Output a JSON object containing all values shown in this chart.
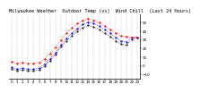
{
  "title": "Milwaukee Weather  Outdoor Temp (vs)  Wind Chill  (Last 24 Hours)",
  "hours": [
    0,
    1,
    2,
    3,
    4,
    5,
    6,
    7,
    8,
    9,
    10,
    11,
    12,
    13,
    14,
    15,
    16,
    17,
    18,
    19,
    20,
    21,
    22,
    23
  ],
  "temp": [
    5,
    3,
    4,
    3,
    3,
    4,
    8,
    14,
    21,
    30,
    38,
    44,
    49,
    53,
    55,
    53,
    50,
    46,
    42,
    38,
    35,
    34,
    33,
    33
  ],
  "wind_chill": [
    -2,
    -4,
    -3,
    -4,
    -4,
    -3,
    2,
    8,
    15,
    24,
    32,
    38,
    43,
    48,
    51,
    49,
    46,
    42,
    38,
    33,
    29,
    28,
    33,
    33
  ],
  "feels_like": [
    -4,
    -6,
    -5,
    -6,
    -6,
    -5,
    0,
    6,
    13,
    22,
    29,
    35,
    40,
    44,
    47,
    45,
    42,
    38,
    34,
    29,
    25,
    24,
    31,
    33
  ],
  "temp_color": "#ff0000",
  "wind_chill_color": "#0000ff",
  "feels_like_color": "#000000",
  "bg_color": "#ffffff",
  "grid_color": "#888888",
  "ylim_min": -15,
  "ylim_max": 60,
  "ytick_values": [
    -10,
    0,
    10,
    20,
    30,
    40,
    50
  ],
  "title_fontsize": 3.8,
  "tick_fontsize": 3.0
}
